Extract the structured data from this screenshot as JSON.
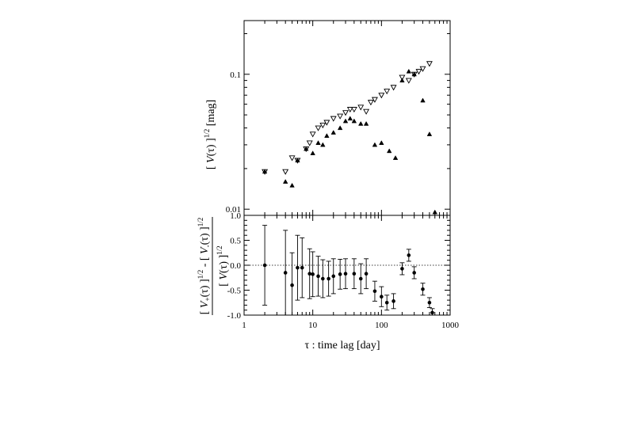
{
  "chart_data": [
    {
      "panel": "top",
      "type": "scatter",
      "xscale": "log",
      "yscale": "log",
      "xlim": [
        1,
        1000
      ],
      "ylim": [
        0.009,
        0.25
      ],
      "ylabel": "[ V(τ) ]^1/2  [mag]",
      "yticks": [
        {
          "value": 0.01,
          "label": "0.01"
        },
        {
          "value": 0.1,
          "label": "0.1"
        }
      ],
      "series": [
        {
          "marker": "open-down-triangle",
          "points": [
            {
              "x": 2,
              "y": 0.019
            },
            {
              "x": 4,
              "y": 0.019
            },
            {
              "x": 5,
              "y": 0.024
            },
            {
              "x": 6,
              "y": 0.023
            },
            {
              "x": 8,
              "y": 0.028
            },
            {
              "x": 9,
              "y": 0.031
            },
            {
              "x": 10,
              "y": 0.036
            },
            {
              "x": 12,
              "y": 0.04
            },
            {
              "x": 14,
              "y": 0.042
            },
            {
              "x": 16,
              "y": 0.044
            },
            {
              "x": 20,
              "y": 0.047
            },
            {
              "x": 25,
              "y": 0.049
            },
            {
              "x": 30,
              "y": 0.052
            },
            {
              "x": 35,
              "y": 0.055
            },
            {
              "x": 40,
              "y": 0.055
            },
            {
              "x": 50,
              "y": 0.057
            },
            {
              "x": 60,
              "y": 0.053
            },
            {
              "x": 70,
              "y": 0.062
            },
            {
              "x": 80,
              "y": 0.065
            },
            {
              "x": 100,
              "y": 0.07
            },
            {
              "x": 120,
              "y": 0.075
            },
            {
              "x": 150,
              "y": 0.08
            },
            {
              "x": 200,
              "y": 0.095
            },
            {
              "x": 250,
              "y": 0.09
            },
            {
              "x": 300,
              "y": 0.1
            },
            {
              "x": 350,
              "y": 0.105
            },
            {
              "x": 400,
              "y": 0.11
            },
            {
              "x": 500,
              "y": 0.12
            }
          ]
        },
        {
          "marker": "filled-up-triangle",
          "points": [
            {
              "x": 2,
              "y": 0.019
            },
            {
              "x": 4,
              "y": 0.016
            },
            {
              "x": 5,
              "y": 0.015
            },
            {
              "x": 6,
              "y": 0.023
            },
            {
              "x": 8,
              "y": 0.028
            },
            {
              "x": 10,
              "y": 0.026
            },
            {
              "x": 12,
              "y": 0.031
            },
            {
              "x": 14,
              "y": 0.03
            },
            {
              "x": 16,
              "y": 0.035
            },
            {
              "x": 20,
              "y": 0.037
            },
            {
              "x": 25,
              "y": 0.04
            },
            {
              "x": 30,
              "y": 0.045
            },
            {
              "x": 35,
              "y": 0.047
            },
            {
              "x": 40,
              "y": 0.045
            },
            {
              "x": 50,
              "y": 0.043
            },
            {
              "x": 60,
              "y": 0.043
            },
            {
              "x": 80,
              "y": 0.03
            },
            {
              "x": 100,
              "y": 0.031
            },
            {
              "x": 130,
              "y": 0.027
            },
            {
              "x": 160,
              "y": 0.024
            },
            {
              "x": 200,
              "y": 0.09
            },
            {
              "x": 250,
              "y": 0.105
            },
            {
              "x": 300,
              "y": 0.1
            },
            {
              "x": 400,
              "y": 0.064
            },
            {
              "x": 500,
              "y": 0.036
            },
            {
              "x": 600,
              "y": 0.0095
            }
          ]
        }
      ]
    },
    {
      "panel": "bottom",
      "type": "scatter",
      "xscale": "log",
      "xlim": [
        1,
        1000
      ],
      "ylim": [
        -1.0,
        1.0
      ],
      "reference_line_y": 0.0,
      "ylabel": "[ V+(τ) ]^1/2 - [ V-(τ) ]^1/2 / [ V(τ) ]^1/2",
      "xlabel": "τ  : time lag  [day]",
      "xticks": [
        {
          "value": 1,
          "label": "1"
        },
        {
          "value": 10,
          "label": "10"
        },
        {
          "value": 100,
          "label": "100"
        },
        {
          "value": 1000,
          "label": "1000"
        }
      ],
      "yticks": [
        {
          "value": 1.0,
          "label": "1.0"
        },
        {
          "value": 0.5,
          "label": "0.5"
        },
        {
          "value": 0.0,
          "label": "0.0"
        },
        {
          "value": -0.5,
          "label": "-0.5"
        },
        {
          "value": -1.0,
          "label": "-1.0"
        }
      ],
      "points": [
        {
          "x": 2,
          "y": 0.0,
          "err": 0.8
        },
        {
          "x": 4,
          "y": -0.15,
          "err": 0.85
        },
        {
          "x": 5,
          "y": -0.4,
          "err": 0.65
        },
        {
          "x": 6,
          "y": -0.05,
          "err": 0.65
        },
        {
          "x": 7,
          "y": -0.05,
          "err": 0.6
        },
        {
          "x": 9,
          "y": -0.17,
          "err": 0.5
        },
        {
          "x": 10,
          "y": -0.18,
          "err": 0.45
        },
        {
          "x": 12,
          "y": -0.22,
          "err": 0.4
        },
        {
          "x": 14,
          "y": -0.27,
          "err": 0.38
        },
        {
          "x": 17,
          "y": -0.27,
          "err": 0.35
        },
        {
          "x": 20,
          "y": -0.22,
          "err": 0.35
        },
        {
          "x": 25,
          "y": -0.18,
          "err": 0.3
        },
        {
          "x": 30,
          "y": -0.17,
          "err": 0.3
        },
        {
          "x": 40,
          "y": -0.17,
          "err": 0.3
        },
        {
          "x": 50,
          "y": -0.27,
          "err": 0.3
        },
        {
          "x": 60,
          "y": -0.17,
          "err": 0.3
        },
        {
          "x": 80,
          "y": -0.52,
          "err": 0.2
        },
        {
          "x": 100,
          "y": -0.63,
          "err": 0.2
        },
        {
          "x": 120,
          "y": -0.75,
          "err": 0.15
        },
        {
          "x": 150,
          "y": -0.72,
          "err": 0.15
        },
        {
          "x": 200,
          "y": -0.07,
          "err": 0.12
        },
        {
          "x": 250,
          "y": 0.2,
          "err": 0.12
        },
        {
          "x": 300,
          "y": -0.15,
          "err": 0.12
        },
        {
          "x": 400,
          "y": -0.48,
          "err": 0.12
        },
        {
          "x": 500,
          "y": -0.75,
          "err": 0.1
        },
        {
          "x": 550,
          "y": -0.95,
          "err": 0.08
        }
      ]
    }
  ]
}
